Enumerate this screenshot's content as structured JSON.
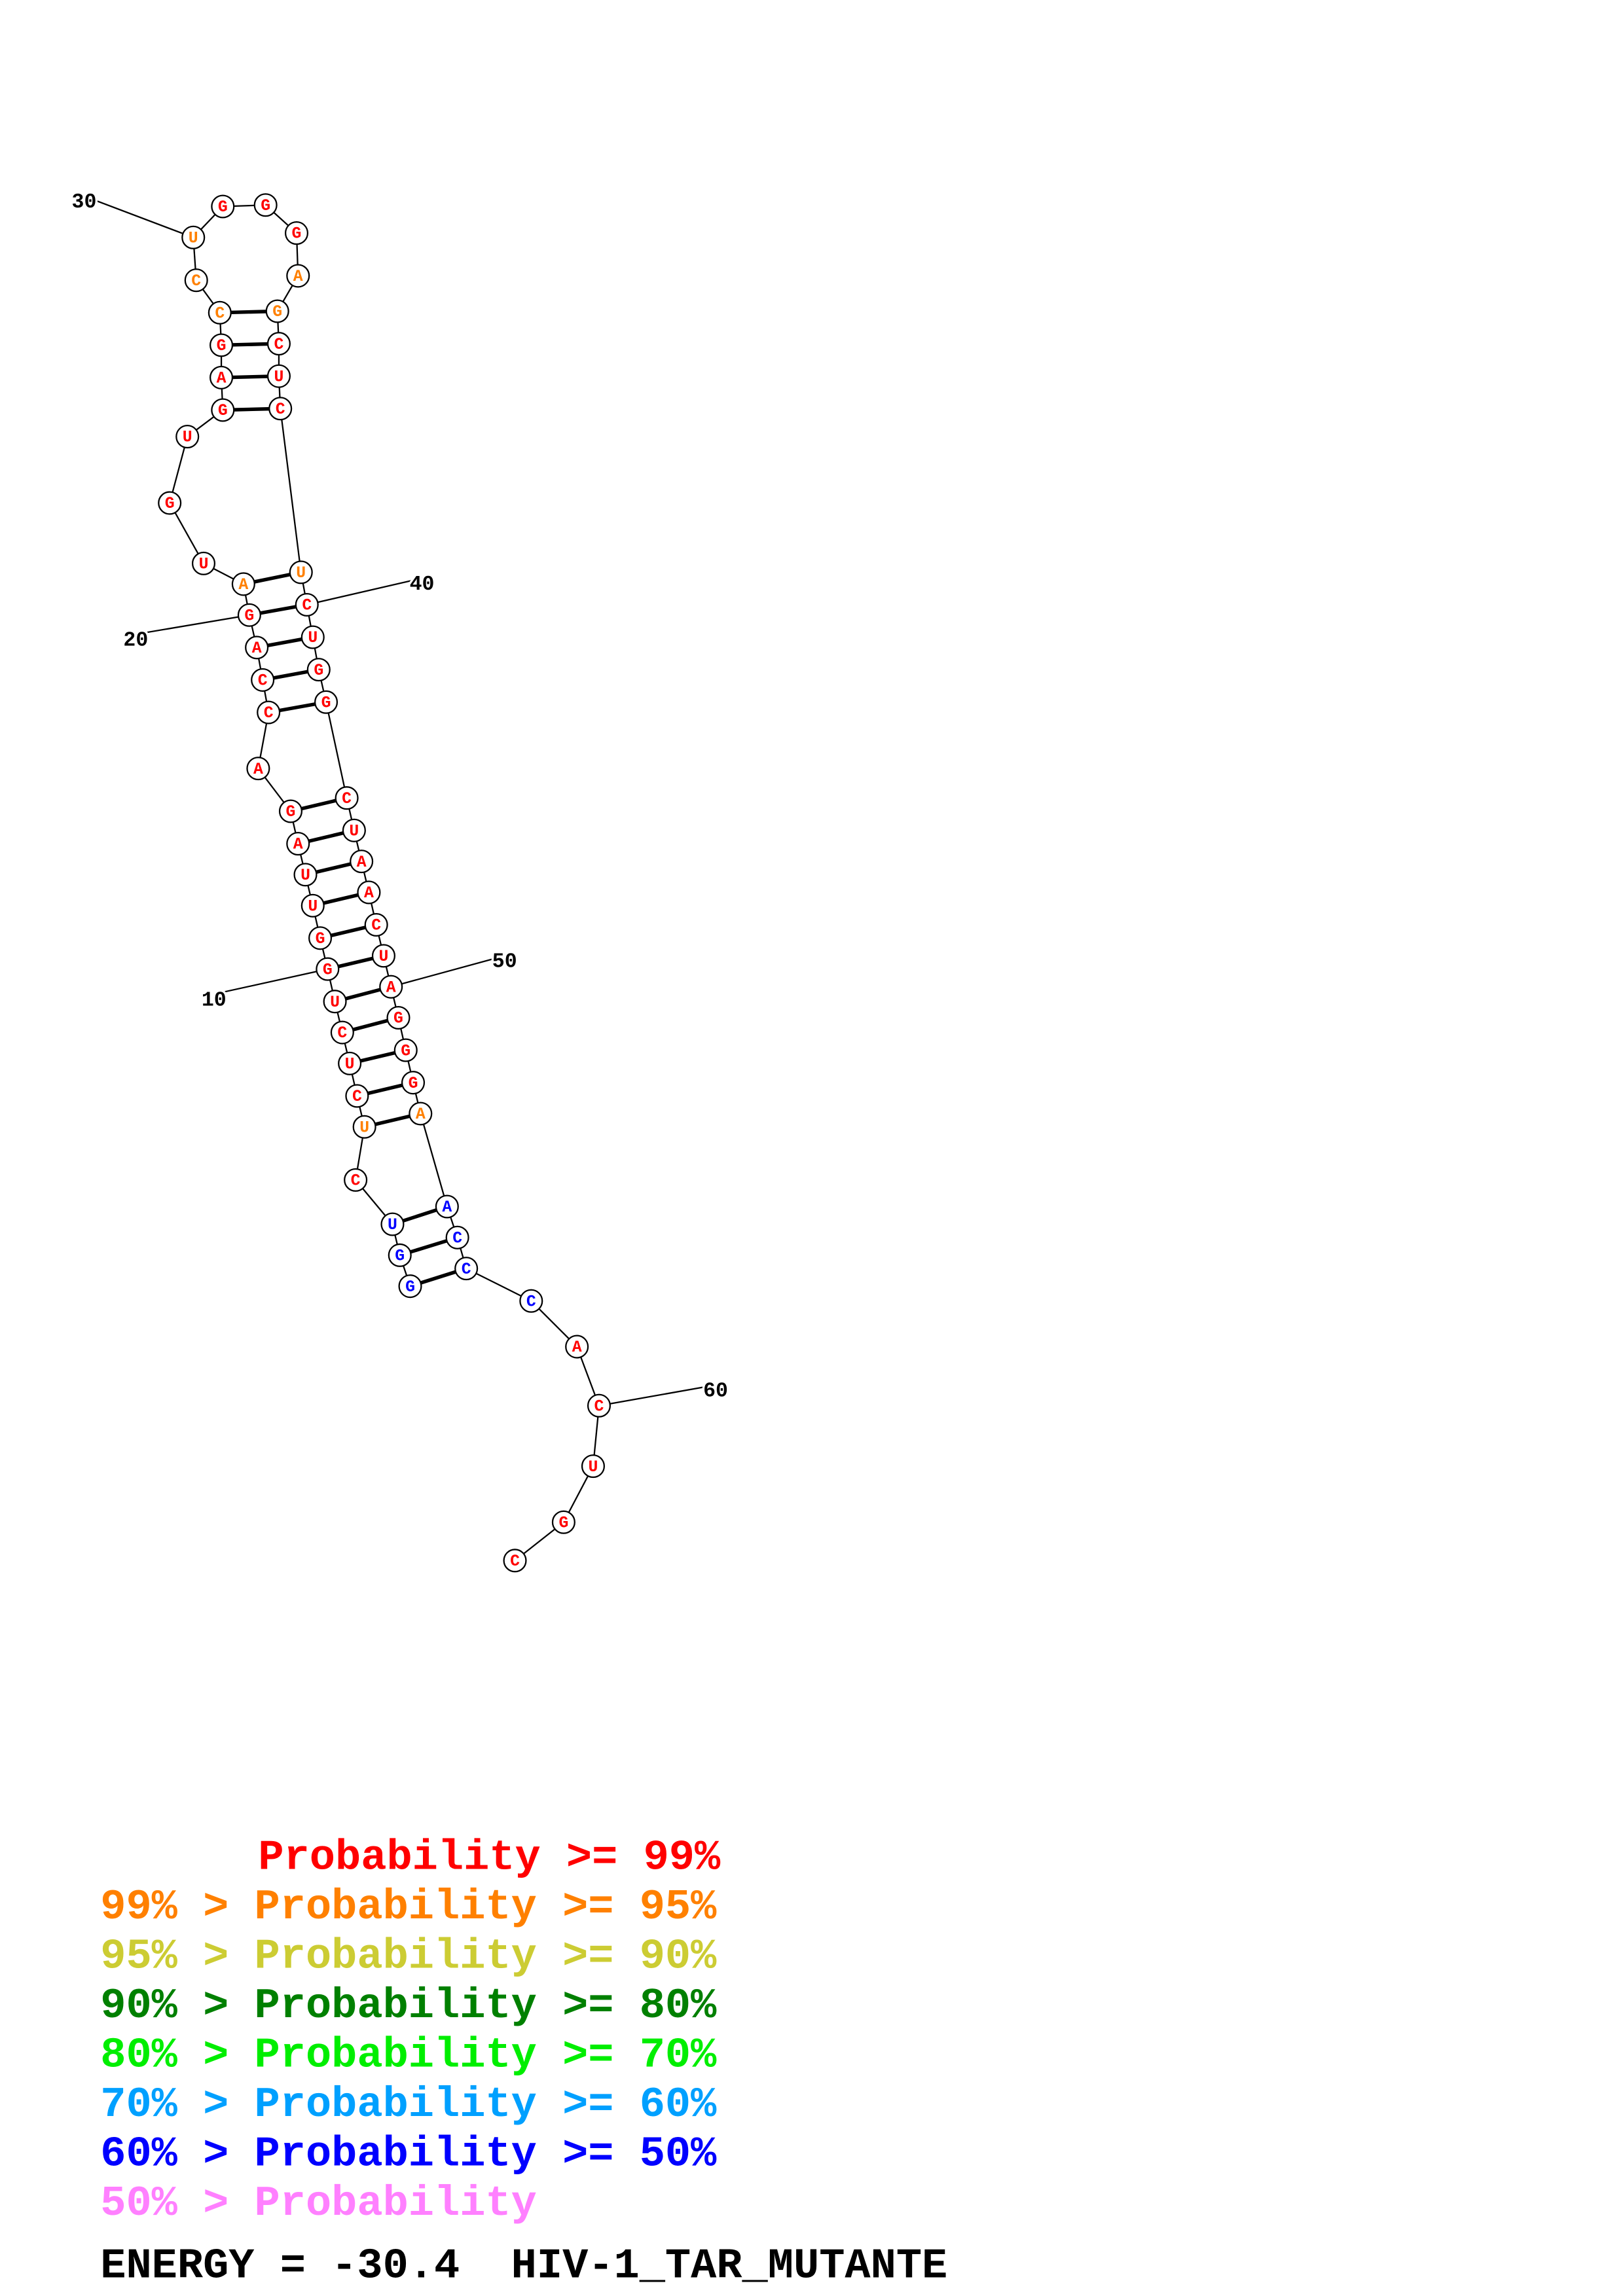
{
  "nucleotides": [
    {
      "base": "G",
      "color": "#0000ff"
    },
    {
      "base": "G",
      "color": "#0000ff"
    },
    {
      "base": "U",
      "color": "#0000ff"
    },
    {
      "base": "C",
      "color": "#ff0000"
    },
    {
      "base": "U",
      "color": "#ff8000"
    },
    {
      "base": "C",
      "color": "#ff0000"
    },
    {
      "base": "U",
      "color": "#ff0000"
    },
    {
      "base": "C",
      "color": "#ff0000"
    },
    {
      "base": "U",
      "color": "#ff0000"
    },
    {
      "base": "G",
      "color": "#ff0000"
    },
    {
      "base": "G",
      "color": "#ff0000"
    },
    {
      "base": "U",
      "color": "#ff0000"
    },
    {
      "base": "U",
      "color": "#ff0000"
    },
    {
      "base": "A",
      "color": "#ff0000"
    },
    {
      "base": "G",
      "color": "#ff0000"
    },
    {
      "base": "A",
      "color": "#ff0000"
    },
    {
      "base": "C",
      "color": "#ff0000"
    },
    {
      "base": "C",
      "color": "#ff0000"
    },
    {
      "base": "A",
      "color": "#ff0000"
    },
    {
      "base": "G",
      "color": "#ff0000"
    },
    {
      "base": "A",
      "color": "#ff8000"
    },
    {
      "base": "U",
      "color": "#ff0000"
    },
    {
      "base": "G",
      "color": "#ff0000"
    },
    {
      "base": "U",
      "color": "#ff0000"
    },
    {
      "base": "G",
      "color": "#ff0000"
    },
    {
      "base": "A",
      "color": "#ff0000"
    },
    {
      "base": "G",
      "color": "#ff0000"
    },
    {
      "base": "C",
      "color": "#ff8000"
    },
    {
      "base": "C",
      "color": "#ff8000"
    },
    {
      "base": "U",
      "color": "#ff8000"
    },
    {
      "base": "G",
      "color": "#ff0000"
    },
    {
      "base": "G",
      "color": "#ff0000"
    },
    {
      "base": "G",
      "color": "#ff0000"
    },
    {
      "base": "A",
      "color": "#ff8000"
    },
    {
      "base": "G",
      "color": "#ff8000"
    },
    {
      "base": "C",
      "color": "#ff0000"
    },
    {
      "base": "U",
      "color": "#ff0000"
    },
    {
      "base": "C",
      "color": "#ff0000"
    },
    {
      "base": "U",
      "color": "#ff8000"
    },
    {
      "base": "C",
      "color": "#ff0000"
    },
    {
      "base": "U",
      "color": "#ff0000"
    },
    {
      "base": "G",
      "color": "#ff0000"
    },
    {
      "base": "G",
      "color": "#ff0000"
    },
    {
      "base": "C",
      "color": "#ff0000"
    },
    {
      "base": "U",
      "color": "#ff0000"
    },
    {
      "base": "A",
      "color": "#ff0000"
    },
    {
      "base": "A",
      "color": "#ff0000"
    },
    {
      "base": "C",
      "color": "#ff0000"
    },
    {
      "base": "U",
      "color": "#ff0000"
    },
    {
      "base": "A",
      "color": "#ff0000"
    },
    {
      "base": "G",
      "color": "#ff0000"
    },
    {
      "base": "G",
      "color": "#ff0000"
    },
    {
      "base": "G",
      "color": "#ff0000"
    },
    {
      "base": "A",
      "color": "#ff8000"
    },
    {
      "base": "A",
      "color": "#0000ff"
    },
    {
      "base": "C",
      "color": "#0000ff"
    },
    {
      "base": "C",
      "color": "#0000ff"
    },
    {
      "base": "C",
      "color": "#0000ff"
    },
    {
      "base": "A",
      "color": "#ff0000"
    },
    {
      "base": "C",
      "color": "#ff0000"
    },
    {
      "base": "U",
      "color": "#ff0000"
    },
    {
      "base": "G",
      "color": "#ff0000"
    },
    {
      "base": "C",
      "color": "#ff0000"
    }
  ],
  "position_labels": [
    10,
    20,
    30,
    40,
    50,
    60
  ],
  "legend": [
    {
      "text": "Probability >= 99%",
      "color": "#ff0000"
    },
    {
      "text": "99% > Probability >= 95%",
      "color": "#ff8000"
    },
    {
      "text": "95% > Probability >= 90%",
      "color": "#cccc33"
    },
    {
      "text": "90% > Probability >= 80%",
      "color": "#008000"
    },
    {
      "text": "80% > Probability >= 70%",
      "color": "#00ee00"
    },
    {
      "text": "70% > Probability >= 60%",
      "color": "#00a0ff"
    },
    {
      "text": "60% > Probability >= 50%",
      "color": "#0000ff"
    },
    {
      "text": "50% > Probability",
      "color": "#ff80ff"
    }
  ],
  "footer": "ENERGY = -30.4  HIV-1_TAR_MUTANTE"
}
